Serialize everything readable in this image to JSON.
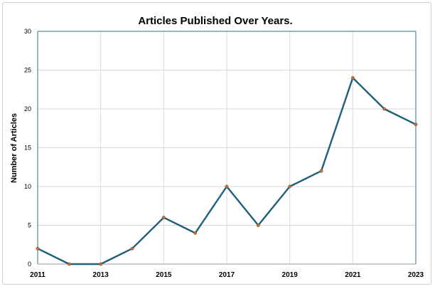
{
  "chart_data": {
    "type": "line",
    "title": "Articles Published Over Years.",
    "xlabel": "",
    "ylabel": "Number of Articles",
    "x": [
      2011,
      2012,
      2013,
      2014,
      2015,
      2016,
      2017,
      2018,
      2019,
      2020,
      2021,
      2022,
      2023
    ],
    "series": [
      {
        "values": [
          2,
          0,
          0,
          2,
          6,
          4,
          10,
          5,
          10,
          12,
          24,
          20,
          18
        ]
      }
    ],
    "xlim": [
      2011,
      2023
    ],
    "ylim": [
      0,
      30
    ],
    "x_tick_labels": [
      "2011",
      "2013",
      "2015",
      "2017",
      "2019",
      "2021",
      "2023"
    ],
    "y_tick_labels": [
      "0",
      "5",
      "10",
      "15",
      "20",
      "25",
      "30"
    ],
    "grid": true,
    "colors": {
      "line": "#1f5f7a",
      "marker": "#c0703a",
      "grid": "#d9d9d9",
      "axis": "#2e6f8a"
    }
  }
}
